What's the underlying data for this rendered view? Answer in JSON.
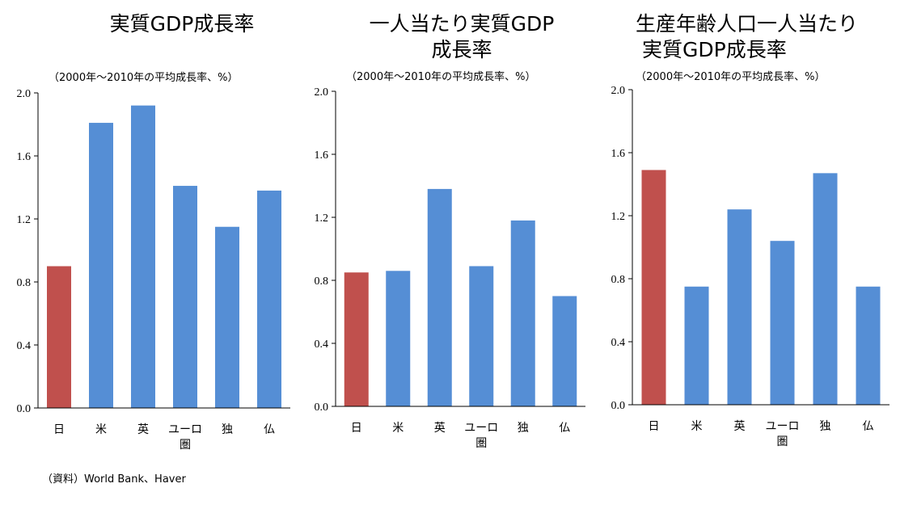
{
  "source": "（資料）World Bank、Haver",
  "colors": {
    "highlight": "#C0504D",
    "bar": "#558ED5",
    "axis": "#000000"
  },
  "chart_data": [
    {
      "type": "bar",
      "title_lines": [
        "実質GDP成長率"
      ],
      "subtitle": "（2000年～2010年の平均成長率、%）",
      "categories": [
        [
          "日"
        ],
        [
          "米"
        ],
        [
          "英"
        ],
        [
          "ユーロ",
          "圏"
        ],
        [
          "独"
        ],
        [
          "仏"
        ]
      ],
      "values": [
        0.9,
        1.81,
        1.92,
        1.41,
        1.15,
        1.38
      ],
      "highlight_index": 0,
      "yticks": [
        "0.0",
        "0.4",
        "0.8",
        "1.2",
        "1.6",
        "2.0"
      ],
      "ylim": [
        0,
        2.0
      ],
      "grid": false
    },
    {
      "type": "bar",
      "title_lines": [
        "一人当たり実質GDP",
        "成長率"
      ],
      "subtitle": "（2000年～2010年の平均成長率、%）",
      "categories": [
        [
          "日"
        ],
        [
          "米"
        ],
        [
          "英"
        ],
        [
          "ユーロ",
          "圏"
        ],
        [
          "独"
        ],
        [
          "仏"
        ]
      ],
      "values": [
        0.85,
        0.86,
        1.38,
        0.89,
        1.18,
        0.7
      ],
      "highlight_index": 0,
      "yticks": [
        "0.0",
        "0.4",
        "0.8",
        "1.2",
        "1.6",
        "2.0"
      ],
      "ylim": [
        0,
        2.0
      ],
      "grid": false
    },
    {
      "type": "bar",
      "title_lines": [
        "生産年齢人口一人当たり",
        "実質GDP成長率"
      ],
      "subtitle": "（2000年～2010年の平均成長率、%）",
      "categories": [
        [
          "日"
        ],
        [
          "米"
        ],
        [
          "英"
        ],
        [
          "ユーロ",
          "圏"
        ],
        [
          "独"
        ],
        [
          "仏"
        ]
      ],
      "values": [
        1.49,
        0.75,
        1.24,
        1.04,
        1.47,
        0.75
      ],
      "highlight_index": 0,
      "yticks": [
        "0.0",
        "0.4",
        "0.8",
        "1.2",
        "1.6",
        "2.0"
      ],
      "ylim": [
        0,
        2.0
      ],
      "grid": false
    }
  ]
}
